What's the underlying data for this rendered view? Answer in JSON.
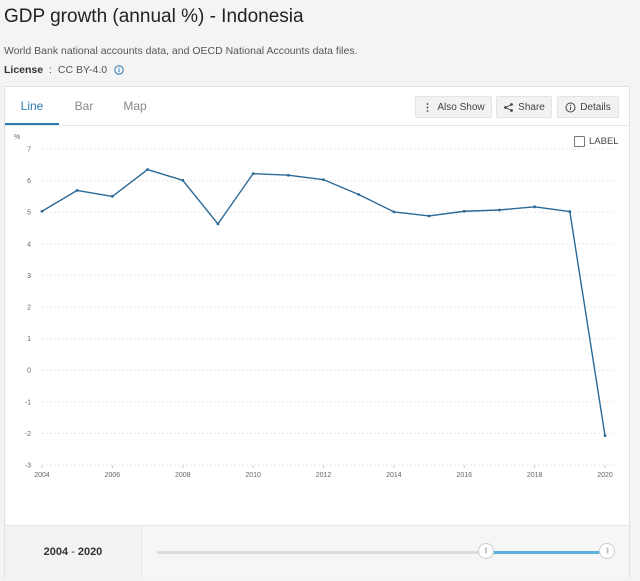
{
  "header": {
    "title": "GDP growth (annual %) - Indonesia",
    "source": "World Bank national accounts data, and OECD National Accounts data files.",
    "license_label": "License",
    "license_sep": " : ",
    "license_value": "CC BY-4.0"
  },
  "tabs": [
    {
      "label": "Line",
      "active": true
    },
    {
      "label": "Bar",
      "active": false
    },
    {
      "label": "Map",
      "active": false
    }
  ],
  "toolbar": {
    "also_show": "Also Show",
    "share": "Share",
    "details": "Details"
  },
  "label_toggle": "LABEL",
  "footer": {
    "range_start": "2004",
    "range_sep": "-",
    "range_end": "2020",
    "slider_start_fraction": 0.73,
    "slider_end_fraction": 1.0
  },
  "colors": {
    "line": "#2b6a96",
    "accent": "#2a7ab0",
    "slider": "#5bb3dd"
  },
  "chart_data": {
    "type": "line",
    "ylabel": "%",
    "x": [
      2004,
      2005,
      2006,
      2007,
      2008,
      2009,
      2010,
      2011,
      2012,
      2013,
      2014,
      2015,
      2016,
      2017,
      2018,
      2019,
      2020
    ],
    "series": [
      {
        "values": [
          5.03,
          5.69,
          5.5,
          6.35,
          6.01,
          4.63,
          6.22,
          6.17,
          6.03,
          5.56,
          5.01,
          4.88,
          5.03,
          5.07,
          5.17,
          5.02,
          -2.07
        ]
      }
    ],
    "ylim": [
      -3,
      7
    ],
    "yticks": [
      7,
      6,
      5,
      4,
      3,
      2,
      1,
      0,
      -1,
      -2,
      -3
    ],
    "xticks": [
      2004,
      2006,
      2008,
      2010,
      2012,
      2014,
      2016,
      2018,
      2020
    ],
    "grid": true
  }
}
